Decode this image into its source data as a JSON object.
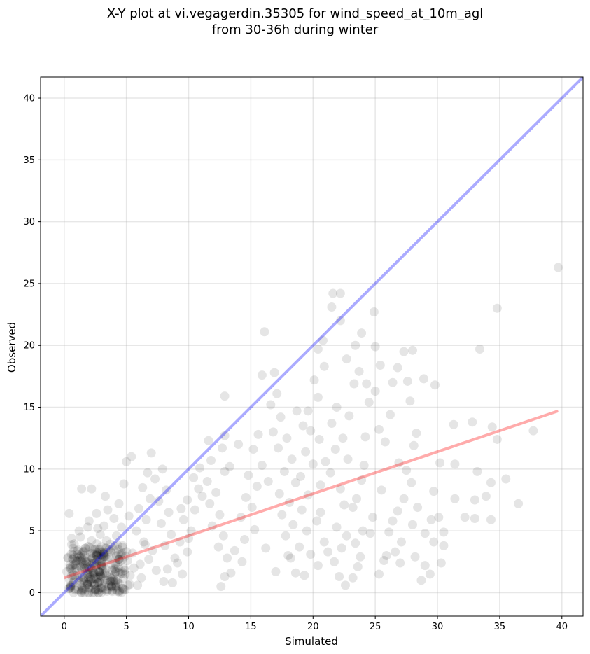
{
  "chart_data": {
    "type": "scatter",
    "title_line1": "X-Y plot at vi.vegagerdin.35305 for wind_speed_at_10m_agl",
    "title_line2": "from 30-36h during winter",
    "xlabel": "Simulated",
    "ylabel": "Observed",
    "xlim": [
      -1.9,
      41.7
    ],
    "ylim": [
      -1.9,
      41.7
    ],
    "xticks": [
      0,
      5,
      10,
      15,
      20,
      25,
      30,
      35,
      40
    ],
    "yticks": [
      0,
      5,
      10,
      15,
      20,
      25,
      30,
      35,
      40
    ],
    "grid": true,
    "point_color": "#000000",
    "identity_line": {
      "x": [
        -1.9,
        41.7
      ],
      "y": [
        -1.9,
        41.7
      ],
      "color": "#0000ff"
    },
    "fit_line": {
      "x": [
        0.0,
        39.7
      ],
      "y": [
        1.2,
        14.7
      ],
      "color": "#ff0000"
    },
    "points": [
      [
        39.7,
        26.3
      ],
      [
        34.8,
        23.0
      ],
      [
        33.4,
        19.7
      ],
      [
        37.7,
        13.1
      ],
      [
        34.8,
        12.4
      ],
      [
        34.4,
        13.4
      ],
      [
        35.5,
        9.2
      ],
      [
        36.5,
        7.2
      ],
      [
        34.3,
        5.9
      ],
      [
        33.0,
        6.0
      ],
      [
        34.3,
        8.9
      ],
      [
        33.9,
        7.8
      ],
      [
        32.2,
        6.1
      ],
      [
        33.0,
        7.5
      ],
      [
        33.2,
        9.8
      ],
      [
        31.4,
        7.6
      ],
      [
        31.4,
        10.4
      ],
      [
        31.3,
        13.6
      ],
      [
        32.8,
        13.8
      ],
      [
        30.5,
        3.8
      ],
      [
        30.5,
        4.9
      ],
      [
        30.3,
        2.4
      ],
      [
        29.7,
        4.1
      ],
      [
        29.4,
        1.5
      ],
      [
        29.0,
        2.2
      ],
      [
        28.7,
        1.0
      ],
      [
        28.2,
        2.9
      ],
      [
        30.1,
        6.1
      ],
      [
        30.2,
        10.5
      ],
      [
        29.8,
        16.8
      ],
      [
        28.9,
        17.3
      ],
      [
        28.0,
        19.6
      ],
      [
        27.6,
        17.1
      ],
      [
        27.8,
        15.5
      ],
      [
        28.3,
        12.9
      ],
      [
        28.1,
        11.9
      ],
      [
        27.5,
        9.9
      ],
      [
        27.9,
        8.9
      ],
      [
        27.3,
        7.6
      ],
      [
        26.8,
        6.6
      ],
      [
        26.4,
        5.8
      ],
      [
        26.1,
        4.9
      ],
      [
        25.9,
        3.0
      ],
      [
        25.7,
        2.6
      ],
      [
        25.3,
        1.5
      ],
      [
        27.0,
        2.4
      ],
      [
        26.6,
        3.3
      ],
      [
        27.1,
        4.1
      ],
      [
        28.0,
        5.5
      ],
      [
        29.0,
        4.8
      ],
      [
        29.5,
        5.9
      ],
      [
        29.7,
        8.2
      ],
      [
        27.3,
        19.5
      ],
      [
        26.8,
        18.2
      ],
      [
        26.4,
        17.0
      ],
      [
        26.2,
        14.4
      ],
      [
        25.8,
        12.2
      ],
      [
        25.3,
        13.2
      ],
      [
        25.0,
        16.3
      ],
      [
        25.4,
        18.4
      ],
      [
        25.0,
        19.9
      ],
      [
        24.9,
        22.7
      ],
      [
        24.5,
        15.4
      ],
      [
        24.2,
        12.6
      ],
      [
        24.1,
        10.3
      ],
      [
        23.9,
        9.1
      ],
      [
        23.5,
        7.6
      ],
      [
        23.2,
        6.9
      ],
      [
        24.8,
        6.1
      ],
      [
        24.0,
        5.0
      ],
      [
        23.4,
        4.0
      ],
      [
        23.8,
        2.9
      ],
      [
        23.6,
        2.1
      ],
      [
        23.2,
        1.2
      ],
      [
        22.6,
        0.6
      ],
      [
        22.1,
        1.3
      ],
      [
        21.7,
        2.5
      ],
      [
        22.3,
        3.6
      ],
      [
        22.7,
        4.6
      ],
      [
        21.9,
        5.3
      ],
      [
        22.5,
        7.1
      ],
      [
        22.2,
        8.4
      ],
      [
        21.4,
        9.7
      ],
      [
        21.8,
        11.6
      ],
      [
        22.4,
        12.5
      ],
      [
        21.5,
        13.7
      ],
      [
        22.9,
        14.3
      ],
      [
        21.9,
        15.0
      ],
      [
        23.3,
        16.9
      ],
      [
        23.7,
        17.9
      ],
      [
        22.7,
        18.9
      ],
      [
        23.4,
        20.0
      ],
      [
        23.9,
        21.0
      ],
      [
        22.2,
        22.0
      ],
      [
        21.5,
        23.1
      ],
      [
        21.6,
        24.2
      ],
      [
        22.2,
        24.2
      ],
      [
        20.8,
        20.4
      ],
      [
        20.4,
        19.7
      ],
      [
        20.9,
        18.3
      ],
      [
        20.1,
        17.2
      ],
      [
        20.4,
        15.8
      ],
      [
        19.6,
        14.7
      ],
      [
        19.2,
        13.5
      ],
      [
        20.5,
        12.4
      ],
      [
        19.4,
        11.4
      ],
      [
        20.0,
        10.4
      ],
      [
        19.0,
        9.4
      ],
      [
        20.6,
        8.7
      ],
      [
        19.6,
        7.9
      ],
      [
        19.1,
        6.7
      ],
      [
        20.3,
        5.8
      ],
      [
        19.5,
        5.0
      ],
      [
        20.9,
        4.1
      ],
      [
        19.8,
        3.1
      ],
      [
        20.4,
        2.2
      ],
      [
        19.3,
        1.4
      ],
      [
        18.6,
        1.6
      ],
      [
        18.2,
        2.8
      ],
      [
        18.9,
        3.7
      ],
      [
        17.8,
        4.6
      ],
      [
        18.4,
        5.5
      ],
      [
        17.5,
        6.3
      ],
      [
        18.1,
        7.3
      ],
      [
        17.3,
        8.0
      ],
      [
        18.6,
        8.9
      ],
      [
        17.7,
        9.8
      ],
      [
        18.3,
        10.8
      ],
      [
        17.2,
        11.7
      ],
      [
        17.9,
        12.5
      ],
      [
        16.8,
        13.0
      ],
      [
        17.4,
        14.2
      ],
      [
        16.6,
        15.2
      ],
      [
        17.1,
        16.1
      ],
      [
        16.9,
        17.8
      ],
      [
        16.1,
        21.1
      ],
      [
        15.9,
        17.6
      ],
      [
        15.6,
        12.8
      ],
      [
        15.2,
        11.6
      ],
      [
        15.9,
        10.3
      ],
      [
        14.8,
        9.5
      ],
      [
        15.5,
        8.6
      ],
      [
        14.6,
        7.7
      ],
      [
        15.1,
        6.9
      ],
      [
        14.2,
        6.1
      ],
      [
        15.3,
        5.1
      ],
      [
        14.5,
        4.3
      ],
      [
        13.7,
        3.4
      ],
      [
        14.3,
        2.5
      ],
      [
        13.4,
        1.6
      ],
      [
        12.6,
        0.5
      ],
      [
        12.9,
        1.3
      ],
      [
        13.1,
        2.8
      ],
      [
        12.4,
        3.7
      ],
      [
        12.8,
        4.6
      ],
      [
        11.9,
        5.4
      ],
      [
        12.5,
        6.3
      ],
      [
        11.7,
        7.2
      ],
      [
        12.2,
        8.1
      ],
      [
        11.5,
        9.0
      ],
      [
        12.9,
        9.8
      ],
      [
        11.8,
        10.7
      ],
      [
        12.7,
        11.7
      ],
      [
        12.9,
        12.7
      ],
      [
        12.9,
        15.9
      ],
      [
        11.6,
        12.3
      ],
      [
        10.9,
        10.1
      ],
      [
        10.4,
        9.3
      ],
      [
        10.8,
        8.4
      ],
      [
        9.9,
        7.5
      ],
      [
        10.5,
        6.7
      ],
      [
        9.6,
        5.9
      ],
      [
        10.2,
        5.0
      ],
      [
        9.3,
        4.1
      ],
      [
        9.9,
        3.3
      ],
      [
        9.1,
        2.4
      ],
      [
        9.5,
        1.5
      ],
      [
        8.7,
        0.8
      ],
      [
        8.3,
        1.9
      ],
      [
        8.9,
        2.8
      ],
      [
        8.1,
        3.8
      ],
      [
        8.6,
        4.7
      ],
      [
        7.8,
        5.6
      ],
      [
        8.4,
        6.5
      ],
      [
        7.6,
        7.4
      ],
      [
        8.2,
        8.3
      ],
      [
        7.3,
        9.2
      ],
      [
        7.9,
        10.0
      ],
      [
        7.0,
        11.3
      ],
      [
        6.7,
        9.7
      ],
      [
        6.3,
        8.5
      ],
      [
        6.9,
        7.6
      ],
      [
        6.0,
        6.8
      ],
      [
        6.6,
        5.9
      ],
      [
        5.8,
        5.0
      ],
      [
        6.4,
        4.1
      ],
      [
        5.5,
        3.2
      ],
      [
        6.1,
        2.3
      ],
      [
        5.3,
        1.4
      ],
      [
        5.9,
        0.6
      ],
      [
        5.0,
        10.6
      ],
      [
        5.4,
        11.0
      ],
      [
        4.8,
        8.8
      ],
      [
        4.4,
        7.2
      ],
      [
        3.3,
        7.8
      ],
      [
        3.5,
        6.7
      ],
      [
        2.6,
        6.4
      ],
      [
        1.4,
        8.4
      ],
      [
        2.2,
        8.4
      ],
      [
        0.4,
        6.4
      ],
      [
        1.9,
        5.3
      ],
      [
        3.2,
        5.4
      ],
      [
        4.0,
        6.0
      ],
      [
        4.6,
        5.3
      ],
      [
        5.2,
        6.2
      ],
      [
        24.3,
        16.9
      ],
      [
        22.8,
        10.8
      ],
      [
        21.0,
        10.6
      ],
      [
        19.8,
        13.1
      ],
      [
        18.7,
        14.7
      ],
      [
        16.4,
        9.0
      ],
      [
        14.0,
        12.0
      ],
      [
        13.3,
        10.2
      ],
      [
        11.1,
        7.8
      ],
      [
        10.0,
        4.4
      ],
      [
        9.4,
        6.8
      ],
      [
        16.2,
        3.6
      ],
      [
        17.0,
        1.7
      ],
      [
        18.0,
        3.0
      ],
      [
        20.6,
        6.5
      ],
      [
        21.2,
        3.3
      ],
      [
        24.6,
        4.8
      ],
      [
        25.5,
        8.3
      ],
      [
        26.9,
        10.5
      ],
      [
        28.4,
        6.9
      ],
      [
        1.0,
        2.0
      ],
      [
        0.7,
        1.4
      ],
      [
        1.2,
        0.9
      ],
      [
        0.5,
        0.5
      ],
      [
        1.6,
        1.2
      ],
      [
        2.0,
        0.4
      ],
      [
        1.8,
        2.5
      ],
      [
        2.4,
        1.6
      ],
      [
        1.1,
        3.1
      ],
      [
        0.3,
        2.8
      ],
      [
        2.6,
        3.0
      ],
      [
        3.0,
        2.2
      ],
      [
        2.8,
        0.9
      ],
      [
        3.4,
        1.4
      ],
      [
        3.8,
        0.5
      ],
      [
        4.1,
        1.9
      ],
      [
        4.4,
        2.7
      ],
      [
        3.6,
        3.5
      ],
      [
        2.2,
        4.2
      ],
      [
        1.3,
        4.5
      ],
      [
        0.6,
        3.9
      ],
      [
        4.7,
        3.8
      ],
      [
        5.1,
        2.6
      ],
      [
        0.9,
        0.2
      ],
      [
        1.5,
        0.3
      ],
      [
        2.5,
        0.2
      ],
      [
        3.1,
        0.3
      ],
      [
        0.2,
        1.7
      ],
      [
        1.7,
        3.6
      ],
      [
        2.9,
        4.7
      ],
      [
        4.2,
        4.6
      ],
      [
        3.9,
        1.2
      ],
      [
        0.8,
        2.3
      ],
      [
        1.4,
        1.9
      ],
      [
        2.1,
        2.9
      ],
      [
        2.7,
        1.3
      ],
      [
        3.3,
        2.9
      ],
      [
        1.9,
        0.8
      ],
      [
        0.4,
        1.1
      ],
      [
        1.1,
        2.6
      ],
      [
        2.3,
        3.5
      ],
      [
        3.7,
        0.9
      ],
      [
        4.9,
        1.5
      ],
      [
        5.6,
        2.0
      ],
      [
        6.2,
        1.2
      ],
      [
        6.8,
        2.7
      ],
      [
        7.4,
        1.8
      ],
      [
        7.1,
        3.4
      ],
      [
        6.5,
        3.9
      ],
      [
        8.0,
        0.9
      ],
      [
        0.6,
        4.4
      ],
      [
        1.2,
        5.0
      ],
      [
        2.0,
        5.8
      ],
      [
        2.7,
        5.2
      ],
      [
        3.4,
        4.2
      ]
    ]
  }
}
